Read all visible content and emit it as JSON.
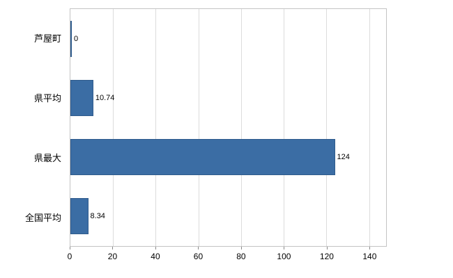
{
  "chart_data": {
    "type": "bar",
    "orientation": "horizontal",
    "title": "",
    "xlabel": "",
    "ylabel": "",
    "categories": [
      "芦屋町",
      "県平均",
      "県最大",
      "全国平均"
    ],
    "values": [
      0,
      10.74,
      124,
      8.34
    ],
    "value_labels": [
      "0",
      "10.74",
      "124",
      "8.34"
    ],
    "xlim": [
      0,
      148
    ],
    "xticks": [
      0,
      20,
      40,
      60,
      80,
      100,
      120,
      140
    ],
    "bar_color": "#3b6da4",
    "bar_border_color": "#2f5b8c",
    "grid": true,
    "gridline_color": "#dcdcdc",
    "plot_border_color": "#c3c3c3",
    "legend": "none"
  }
}
